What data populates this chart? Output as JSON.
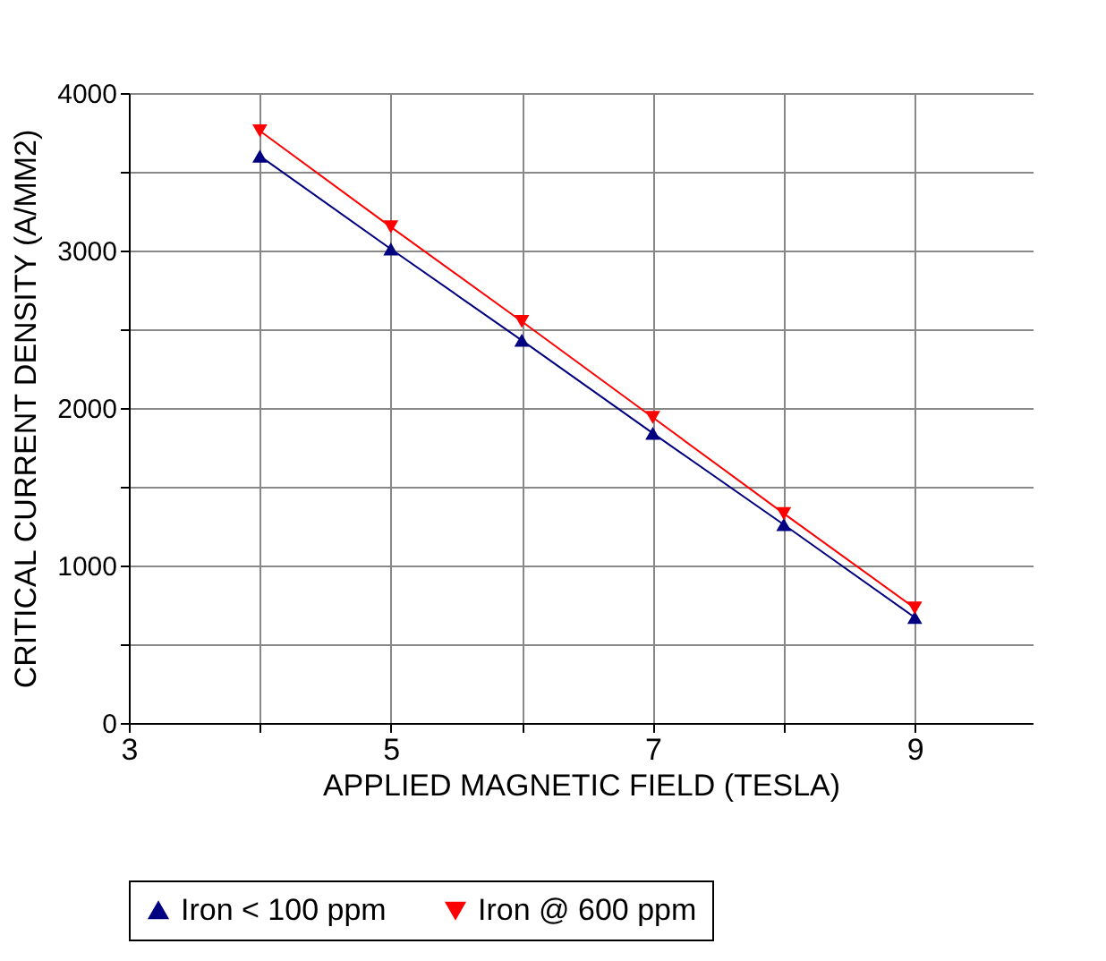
{
  "chart_data": {
    "type": "line",
    "xlabel": "APPLIED MAGNETIC FIELD (TESLA)",
    "ylabel": "CRITICAL CURRENT DENSITY (A/MM2)",
    "x": [
      4,
      5,
      6,
      7,
      8,
      9
    ],
    "series": [
      {
        "name": "Iron < 100 ppm",
        "color": "#000080",
        "marker": "triangle",
        "values": [
          3600,
          3010,
          2430,
          1840,
          1260,
          670
        ]
      },
      {
        "name": "Iron @ 600 ppm",
        "color": "#ff0000",
        "marker": "triangle_down",
        "values": [
          3760,
          3150,
          2550,
          1940,
          1330,
          730
        ]
      }
    ],
    "xlim": [
      3,
      9.9
    ],
    "xticks": [
      3,
      {
        "value": 4,
        "label": null
      },
      5,
      {
        "value": 6,
        "label": null
      },
      7,
      {
        "value": 8,
        "label": null
      },
      9
    ],
    "ylim": [
      0,
      4000
    ],
    "yticks": [
      0,
      {
        "value": 500,
        "label": null
      },
      1000,
      {
        "value": 1500,
        "label": null
      },
      2000,
      {
        "value": 2500,
        "label": null
      },
      3000,
      {
        "value": 3500,
        "label": null
      },
      4000
    ],
    "grid": true,
    "legend": "bottom",
    "line_style": "solid"
  }
}
